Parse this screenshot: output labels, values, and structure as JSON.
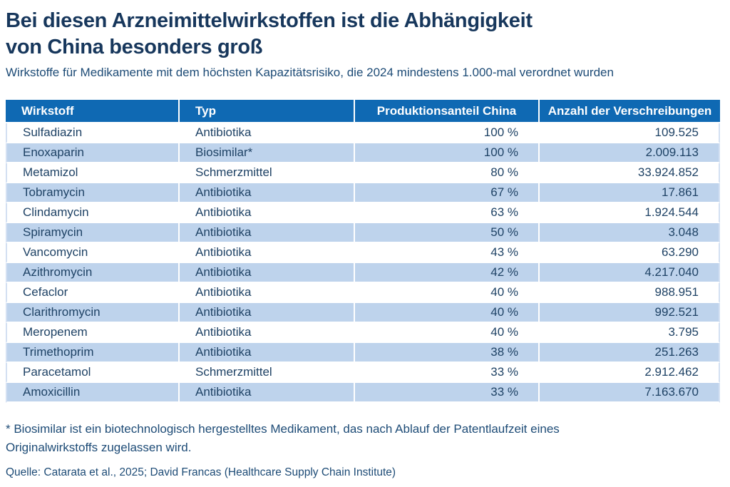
{
  "header": {
    "title_lines": [
      "Bei diesen Arzneimittelwirkstoffen ist die Abhängigkeit",
      "von China besonders groß"
    ],
    "subtitle": "Wirkstoffe für Medikamente mit dem höchsten Kapazitätsrisiko, die 2024 mindestens 1.000-mal verordnet wurden"
  },
  "chart_data": {
    "type": "table",
    "title": "Bei diesen Arzneimittelwirkstoffen ist die Abhängigkeit von China besonders groß",
    "subtitle": "Wirkstoffe für Medikamente mit dem höchsten Kapazitätsrisiko, die 2024 mindestens 1.000-mal verordnet wurden",
    "columns": [
      "Wirkstoff",
      "Typ",
      "Produktionsanteil China",
      "Anzahl der Verschreibungen"
    ],
    "rows": [
      [
        "Sulfadiazin",
        "Antibiotika",
        "100 %",
        "109.525"
      ],
      [
        "Enoxaparin",
        "Biosimilar*",
        "100 %",
        "2.009.113"
      ],
      [
        "Metamizol",
        "Schmerzmittel",
        "80 %",
        "33.924.852"
      ],
      [
        "Tobramycin",
        "Antibiotika",
        "67 %",
        "17.861"
      ],
      [
        "Clindamycin",
        "Antibiotika",
        "63 %",
        "1.924.544"
      ],
      [
        "Spiramycin",
        "Antibiotika",
        "50 %",
        "3.048"
      ],
      [
        "Vancomycin",
        "Antibiotika",
        "43 %",
        "63.290"
      ],
      [
        "Azithromycin",
        "Antibiotika",
        "42 %",
        "4.217.040"
      ],
      [
        "Cefaclor",
        "Antibiotika",
        "40 %",
        "988.951"
      ],
      [
        "Clarithromycin",
        "Antibiotika",
        "40 %",
        "992.521"
      ],
      [
        "Meropenem",
        "Antibiotika",
        "40 %",
        "3.795"
      ],
      [
        "Trimethoprim",
        "Antibiotika",
        "38 %",
        "251.263"
      ],
      [
        "Paracetamol",
        "Schmerzmittel",
        "33 %",
        "2.912.462"
      ],
      [
        "Amoxicillin",
        "Antibiotika",
        "33 %",
        "7.163.670"
      ]
    ],
    "production_share_pct": [
      100,
      100,
      80,
      67,
      63,
      50,
      43,
      42,
      40,
      40,
      40,
      38,
      33,
      33
    ],
    "prescriptions": [
      109525,
      2009113,
      33924852,
      17861,
      1924544,
      3048,
      63290,
      4217040,
      988951,
      992521,
      3795,
      251263,
      2912462,
      7163670
    ]
  },
  "notes": {
    "footnote": "* Biosimilar ist ein biotechnologisch hergestelltes Medikament, das nach Ablauf der Patentlaufzeit eines Originalwirkstoffs zugelassen wird.",
    "source": "Quelle: Catarata et al., 2025; David Francas (Healthcare Supply Chain Institute)"
  },
  "colors": {
    "header_bg": "#0f69b3",
    "row_alt_bg": "#bed3ec",
    "title_text": "#17375c",
    "table_text": "#1e4265",
    "note_text": "#1d4b76",
    "page_bg": "#ffffff"
  }
}
